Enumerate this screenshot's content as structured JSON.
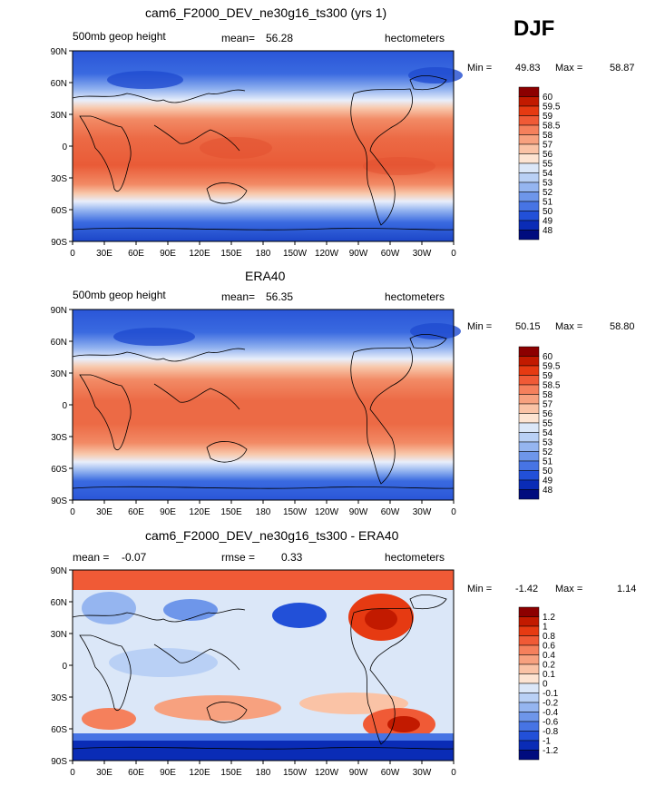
{
  "season": "DJF",
  "x_tick_labels": [
    "0",
    "30E",
    "60E",
    "90E",
    "120E",
    "150E",
    "180",
    "150W",
    "120W",
    "90W",
    "60W",
    "30W",
    "0"
  ],
  "y_tick_labels": [
    "90N",
    "60N",
    "30N",
    "0",
    "30S",
    "60S",
    "90S"
  ],
  "panels": [
    {
      "title": "cam6_F2000_DEV_ne30g16_ts300 (yrs 1)",
      "left_label": "500mb geop height",
      "mean_label": "mean=",
      "mean_value": "56.28",
      "units": "hectometers",
      "min_label": "Min =",
      "min_value": "49.83",
      "max_label": "Max =",
      "max_value": "58.87",
      "legend_labels": [
        "60",
        "59.5",
        "59",
        "58.5",
        "58",
        "57",
        "56",
        "55",
        "54",
        "53",
        "52",
        "51",
        "50",
        "49",
        "48"
      ],
      "legend_colors": [
        "#8c0000",
        "#c21a00",
        "#e63a12",
        "#f05a36",
        "#f5805c",
        "#f7a17f",
        "#fac3a6",
        "#fde4d2",
        "#dbe7f8",
        "#b9d0f5",
        "#95b5f0",
        "#6e96ea",
        "#4774e4",
        "#2250d8",
        "#0a2cb6",
        "#000c7e"
      ]
    },
    {
      "title": "ERA40",
      "left_label": "500mb geop height",
      "mean_label": "mean=",
      "mean_value": "56.35",
      "units": "hectometers",
      "min_label": "Min =",
      "min_value": "50.15",
      "max_label": "Max =",
      "max_value": "58.80",
      "legend_labels": [
        "60",
        "59.5",
        "59",
        "58.5",
        "58",
        "57",
        "56",
        "55",
        "54",
        "53",
        "52",
        "51",
        "50",
        "49",
        "48"
      ],
      "legend_colors": [
        "#8c0000",
        "#c21a00",
        "#e63a12",
        "#f05a36",
        "#f5805c",
        "#f7a17f",
        "#fac3a6",
        "#fde4d2",
        "#dbe7f8",
        "#b9d0f5",
        "#95b5f0",
        "#6e96ea",
        "#4774e4",
        "#2250d8",
        "#0a2cb6",
        "#000c7e"
      ]
    },
    {
      "title": "cam6_F2000_DEV_ne30g16_ts300 - ERA40",
      "left_label": "mean =",
      "left_value": "-0.07",
      "mid_label": "rmse =",
      "mid_value": "0.33",
      "units": "hectometers",
      "min_label": "Min =",
      "min_value": "-1.42",
      "max_label": "Max =",
      "max_value": "1.14",
      "legend_labels": [
        "1.2",
        "1",
        "0.8",
        "0.6",
        "0.4",
        "0.2",
        "0.1",
        "0",
        "-0.1",
        "-0.2",
        "-0.4",
        "-0.6",
        "-0.8",
        "-1",
        "-1.2"
      ],
      "legend_colors": [
        "#8c0000",
        "#c21a00",
        "#e63a12",
        "#f05a36",
        "#f5805c",
        "#f7a17f",
        "#fac3a6",
        "#fde4d2",
        "#dbe7f8",
        "#b9d0f5",
        "#95b5f0",
        "#6e96ea",
        "#4774e4",
        "#2250d8",
        "#0a2cb6",
        "#000c7e"
      ]
    }
  ]
}
